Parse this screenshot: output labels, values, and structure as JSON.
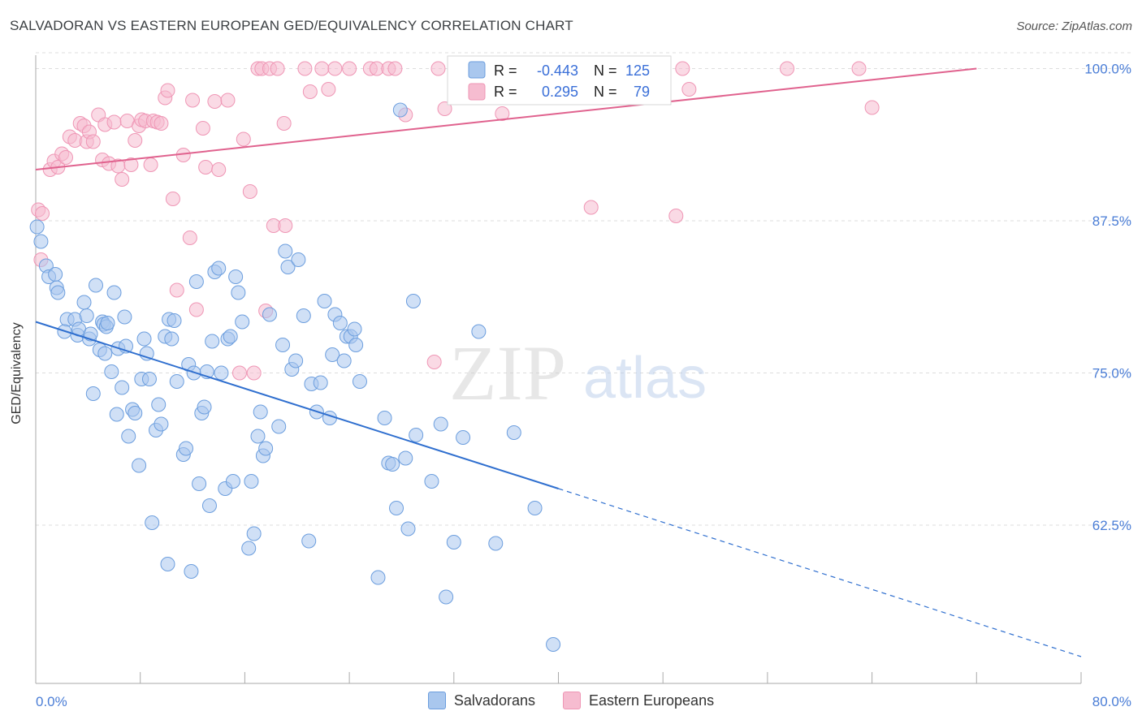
{
  "title": "SALVADORAN VS EASTERN EUROPEAN GED/EQUIVALENCY CORRELATION CHART",
  "source": "Source: ZipAtlas.com",
  "watermark": {
    "zip": "ZIP",
    "atlas": "atlas"
  },
  "colors": {
    "blue_fill": "#a9c7ee",
    "blue_stroke": "#6c9ede",
    "blue_line": "#2f6fcf",
    "pink_fill": "#f6bcd0",
    "pink_stroke": "#ef96b5",
    "pink_line": "#e0628e",
    "tick": "#4a7dd6",
    "grid": "#dddddd"
  },
  "stats": {
    "r_label": "R =",
    "n_label": "N =",
    "rows": [
      {
        "series": "Salvadorans",
        "r": "-0.443",
        "n": "125"
      },
      {
        "series": "Eastern Europeans",
        "r": "0.295",
        "n": "79"
      }
    ]
  },
  "legend": [
    "Salvadorans",
    "Eastern Europeans"
  ],
  "chart_data": {
    "type": "scatter",
    "title": "SALVADORAN VS EASTERN EUROPEAN GED/EQUIVALENCY CORRELATION CHART",
    "xlabel": "",
    "ylabel": "GED/Equivalency",
    "xlim": [
      0,
      80
    ],
    "ylim": [
      49.5,
      101.5
    ],
    "x_tick_labels": [
      "0.0%",
      "80.0%"
    ],
    "y_ticks": [
      62.5,
      75.0,
      87.5,
      100.0
    ],
    "y_tick_labels": [
      "62.5%",
      "75.0%",
      "87.5%",
      "100.0%"
    ],
    "grid": true,
    "legend_position": "bottom",
    "series": [
      {
        "name": "Salvadorans",
        "trend": {
          "x": [
            0,
            40
          ],
          "y": [
            79.2,
            65.5
          ],
          "dashed_to": [
            80,
            51.7
          ]
        },
        "points": [
          [
            0.1,
            87.0
          ],
          [
            0.4,
            85.8
          ],
          [
            0.8,
            83.8
          ],
          [
            1.0,
            82.9
          ],
          [
            1.5,
            83.1
          ],
          [
            1.6,
            82.0
          ],
          [
            1.7,
            81.6
          ],
          [
            2.4,
            79.4
          ],
          [
            2.2,
            78.4
          ],
          [
            3.0,
            79.4
          ],
          [
            3.7,
            80.8
          ],
          [
            3.2,
            78.1
          ],
          [
            3.3,
            78.6
          ],
          [
            3.9,
            79.7
          ],
          [
            4.1,
            77.8
          ],
          [
            4.2,
            78.2
          ],
          [
            4.4,
            73.3
          ],
          [
            4.6,
            82.2
          ],
          [
            4.9,
            76.9
          ],
          [
            5.1,
            79.2
          ],
          [
            5.2,
            79.0
          ],
          [
            5.3,
            76.6
          ],
          [
            5.4,
            78.8
          ],
          [
            5.5,
            79.1
          ],
          [
            5.8,
            75.1
          ],
          [
            6.0,
            81.6
          ],
          [
            6.2,
            71.6
          ],
          [
            6.3,
            77.0
          ],
          [
            6.6,
            73.8
          ],
          [
            6.8,
            79.6
          ],
          [
            6.9,
            77.2
          ],
          [
            7.1,
            69.8
          ],
          [
            7.4,
            72.0
          ],
          [
            7.6,
            71.7
          ],
          [
            7.9,
            67.4
          ],
          [
            8.1,
            74.5
          ],
          [
            8.3,
            77.8
          ],
          [
            8.5,
            76.6
          ],
          [
            8.7,
            74.5
          ],
          [
            8.9,
            62.7
          ],
          [
            9.2,
            70.3
          ],
          [
            9.4,
            72.4
          ],
          [
            9.6,
            70.8
          ],
          [
            9.9,
            78.0
          ],
          [
            10.1,
            59.3
          ],
          [
            10.2,
            79.4
          ],
          [
            10.4,
            77.8
          ],
          [
            10.6,
            79.3
          ],
          [
            10.8,
            74.3
          ],
          [
            11.3,
            68.3
          ],
          [
            11.5,
            68.8
          ],
          [
            11.7,
            75.7
          ],
          [
            11.9,
            58.7
          ],
          [
            12.1,
            75.0
          ],
          [
            12.3,
            82.5
          ],
          [
            12.5,
            65.9
          ],
          [
            12.7,
            71.7
          ],
          [
            12.9,
            72.2
          ],
          [
            13.1,
            75.1
          ],
          [
            13.3,
            64.1
          ],
          [
            13.5,
            77.6
          ],
          [
            13.7,
            83.3
          ],
          [
            14.0,
            83.6
          ],
          [
            14.2,
            75.0
          ],
          [
            14.5,
            65.5
          ],
          [
            14.7,
            77.8
          ],
          [
            14.9,
            78.0
          ],
          [
            15.1,
            66.1
          ],
          [
            15.3,
            82.9
          ],
          [
            15.5,
            81.6
          ],
          [
            15.8,
            79.2
          ],
          [
            16.3,
            60.6
          ],
          [
            16.5,
            66.1
          ],
          [
            16.7,
            61.8
          ],
          [
            17.0,
            69.8
          ],
          [
            17.2,
            71.8
          ],
          [
            17.4,
            68.2
          ],
          [
            17.6,
            68.8
          ],
          [
            17.9,
            79.8
          ],
          [
            18.6,
            70.6
          ],
          [
            18.9,
            77.3
          ],
          [
            19.1,
            85.0
          ],
          [
            19.3,
            83.7
          ],
          [
            19.6,
            75.3
          ],
          [
            19.9,
            76.0
          ],
          [
            20.1,
            84.3
          ],
          [
            20.5,
            79.7
          ],
          [
            20.9,
            61.2
          ],
          [
            21.1,
            74.1
          ],
          [
            21.5,
            71.8
          ],
          [
            21.8,
            74.2
          ],
          [
            22.1,
            80.9
          ],
          [
            22.5,
            71.3
          ],
          [
            22.7,
            76.5
          ],
          [
            22.9,
            79.8
          ],
          [
            23.3,
            79.1
          ],
          [
            23.6,
            76.0
          ],
          [
            23.8,
            78.0
          ],
          [
            24.1,
            78.0
          ],
          [
            24.4,
            78.6
          ],
          [
            24.5,
            77.3
          ],
          [
            24.8,
            74.3
          ],
          [
            26.2,
            58.2
          ],
          [
            26.7,
            71.3
          ],
          [
            27.0,
            67.6
          ],
          [
            27.3,
            67.5
          ],
          [
            27.6,
            63.9
          ],
          [
            27.9,
            96.6
          ],
          [
            28.3,
            68.0
          ],
          [
            28.5,
            62.2
          ],
          [
            28.9,
            80.9
          ],
          [
            29.1,
            69.9
          ],
          [
            30.3,
            66.1
          ],
          [
            31.0,
            70.8
          ],
          [
            31.4,
            56.6
          ],
          [
            32.0,
            61.1
          ],
          [
            32.7,
            69.7
          ],
          [
            33.9,
            78.4
          ],
          [
            35.2,
            61.0
          ],
          [
            36.6,
            70.1
          ],
          [
            38.2,
            63.9
          ],
          [
            39.6,
            52.7
          ]
        ]
      },
      {
        "name": "Eastern Europeans",
        "trend": {
          "x": [
            0,
            72
          ],
          "y": [
            91.7,
            100.0
          ]
        },
        "points": [
          [
            0.2,
            88.4
          ],
          [
            0.5,
            88.1
          ],
          [
            0.4,
            84.3
          ],
          [
            1.1,
            91.7
          ],
          [
            1.4,
            92.4
          ],
          [
            1.7,
            91.9
          ],
          [
            2.0,
            93.0
          ],
          [
            2.3,
            92.7
          ],
          [
            2.6,
            94.4
          ],
          [
            3.0,
            94.1
          ],
          [
            3.4,
            95.5
          ],
          [
            3.7,
            95.3
          ],
          [
            3.9,
            94.0
          ],
          [
            4.1,
            94.8
          ],
          [
            4.4,
            94.0
          ],
          [
            4.8,
            96.2
          ],
          [
            5.1,
            92.5
          ],
          [
            5.3,
            95.4
          ],
          [
            5.6,
            92.2
          ],
          [
            6.0,
            95.6
          ],
          [
            6.3,
            92.0
          ],
          [
            6.6,
            90.9
          ],
          [
            7.0,
            95.7
          ],
          [
            7.3,
            92.1
          ],
          [
            7.6,
            94.1
          ],
          [
            7.9,
            95.3
          ],
          [
            8.1,
            95.8
          ],
          [
            8.4,
            95.7
          ],
          [
            8.8,
            92.1
          ],
          [
            9.0,
            95.7
          ],
          [
            9.3,
            95.6
          ],
          [
            9.6,
            95.5
          ],
          [
            9.9,
            97.6
          ],
          [
            10.1,
            98.2
          ],
          [
            10.5,
            89.3
          ],
          [
            10.8,
            81.8
          ],
          [
            11.3,
            92.9
          ],
          [
            11.8,
            86.1
          ],
          [
            12.0,
            97.4
          ],
          [
            12.3,
            80.2
          ],
          [
            12.8,
            95.1
          ],
          [
            13.0,
            91.9
          ],
          [
            13.7,
            97.3
          ],
          [
            14.0,
            91.7
          ],
          [
            14.7,
            97.4
          ],
          [
            15.6,
            75.0
          ],
          [
            15.9,
            94.2
          ],
          [
            16.4,
            89.9
          ],
          [
            16.7,
            75.0
          ],
          [
            17.0,
            100.0
          ],
          [
            17.3,
            100.0
          ],
          [
            17.6,
            80.1
          ],
          [
            17.9,
            100.0
          ],
          [
            18.2,
            87.1
          ],
          [
            18.5,
            100.0
          ],
          [
            19.0,
            95.5
          ],
          [
            19.1,
            87.1
          ],
          [
            20.6,
            100.0
          ],
          [
            21.0,
            98.1
          ],
          [
            21.9,
            100.0
          ],
          [
            22.4,
            98.3
          ],
          [
            22.9,
            100.0
          ],
          [
            24.0,
            100.0
          ],
          [
            25.6,
            100.0
          ],
          [
            26.1,
            100.0
          ],
          [
            27.0,
            100.0
          ],
          [
            27.5,
            100.0
          ],
          [
            28.3,
            96.2
          ],
          [
            30.5,
            75.9
          ],
          [
            30.8,
            100.0
          ],
          [
            31.3,
            96.7
          ],
          [
            34.7,
            100.0
          ],
          [
            35.7,
            96.3
          ],
          [
            37.0,
            100.0
          ],
          [
            42.5,
            88.6
          ],
          [
            43.4,
            100.0
          ],
          [
            49.0,
            87.9
          ],
          [
            49.5,
            100.0
          ],
          [
            50.0,
            98.3
          ],
          [
            57.5,
            100.0
          ],
          [
            63.0,
            100.0
          ],
          [
            64.0,
            96.8
          ]
        ]
      }
    ]
  }
}
